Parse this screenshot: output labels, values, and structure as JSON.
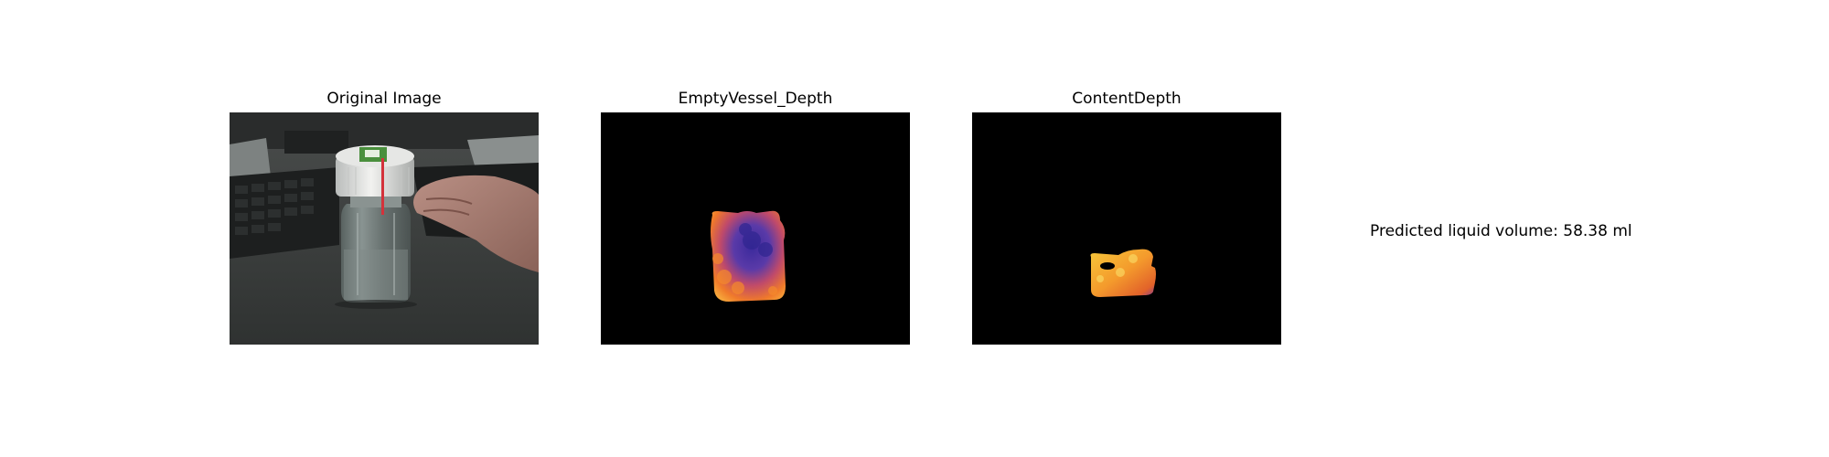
{
  "panels": {
    "original": {
      "title": "Original Image",
      "image": "photo of a plastic bottle with white cap on a desk next to a keyboard and a hand"
    },
    "empty_vessel": {
      "title": "EmptyVessel_Depth",
      "image": "depth map of empty vessel, purple-orange heat colormap on black background"
    },
    "content": {
      "title": "ContentDepth",
      "image": "depth map of liquid content, yellow-orange heat colormap on black background"
    }
  },
  "prediction": {
    "text": "Predicted liquid volume: 58.38 ml"
  }
}
